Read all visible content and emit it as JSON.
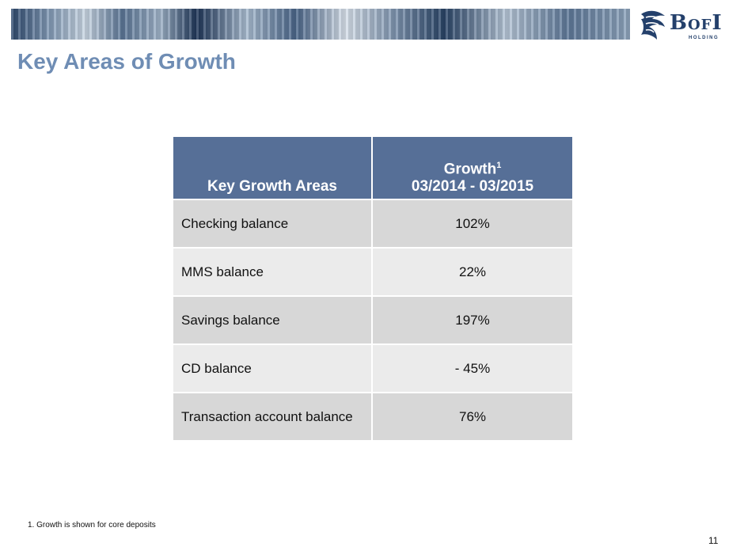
{
  "logo": {
    "brand_big1": "B",
    "brand_small": "O",
    "brand_small2": "F",
    "brand_big2": "I",
    "subtitle": "HOLDING"
  },
  "slide": {
    "title": "Key Areas of Growth",
    "page_number": "11",
    "footnote": "1. Growth is shown for core deposits"
  },
  "table": {
    "col1_header": "Key Growth Areas",
    "col2_header_line1": "Growth",
    "col2_header_sup": "1",
    "col2_header_line2": "03/2014 - 03/2015",
    "rows": [
      {
        "area": "Checking balance",
        "growth": "102%"
      },
      {
        "area": "MMS balance",
        "growth": "22%"
      },
      {
        "area": "Savings balance",
        "growth": "197%"
      },
      {
        "area": "CD balance",
        "growth": "- 45%"
      },
      {
        "area": "Transaction account balance",
        "growth": "76%"
      }
    ]
  },
  "colors": {
    "title": "#6f8db4",
    "header_bg": "#566f97",
    "row_dark": "#d7d7d7",
    "row_light": "#ebebeb",
    "brand": "#24406b"
  }
}
